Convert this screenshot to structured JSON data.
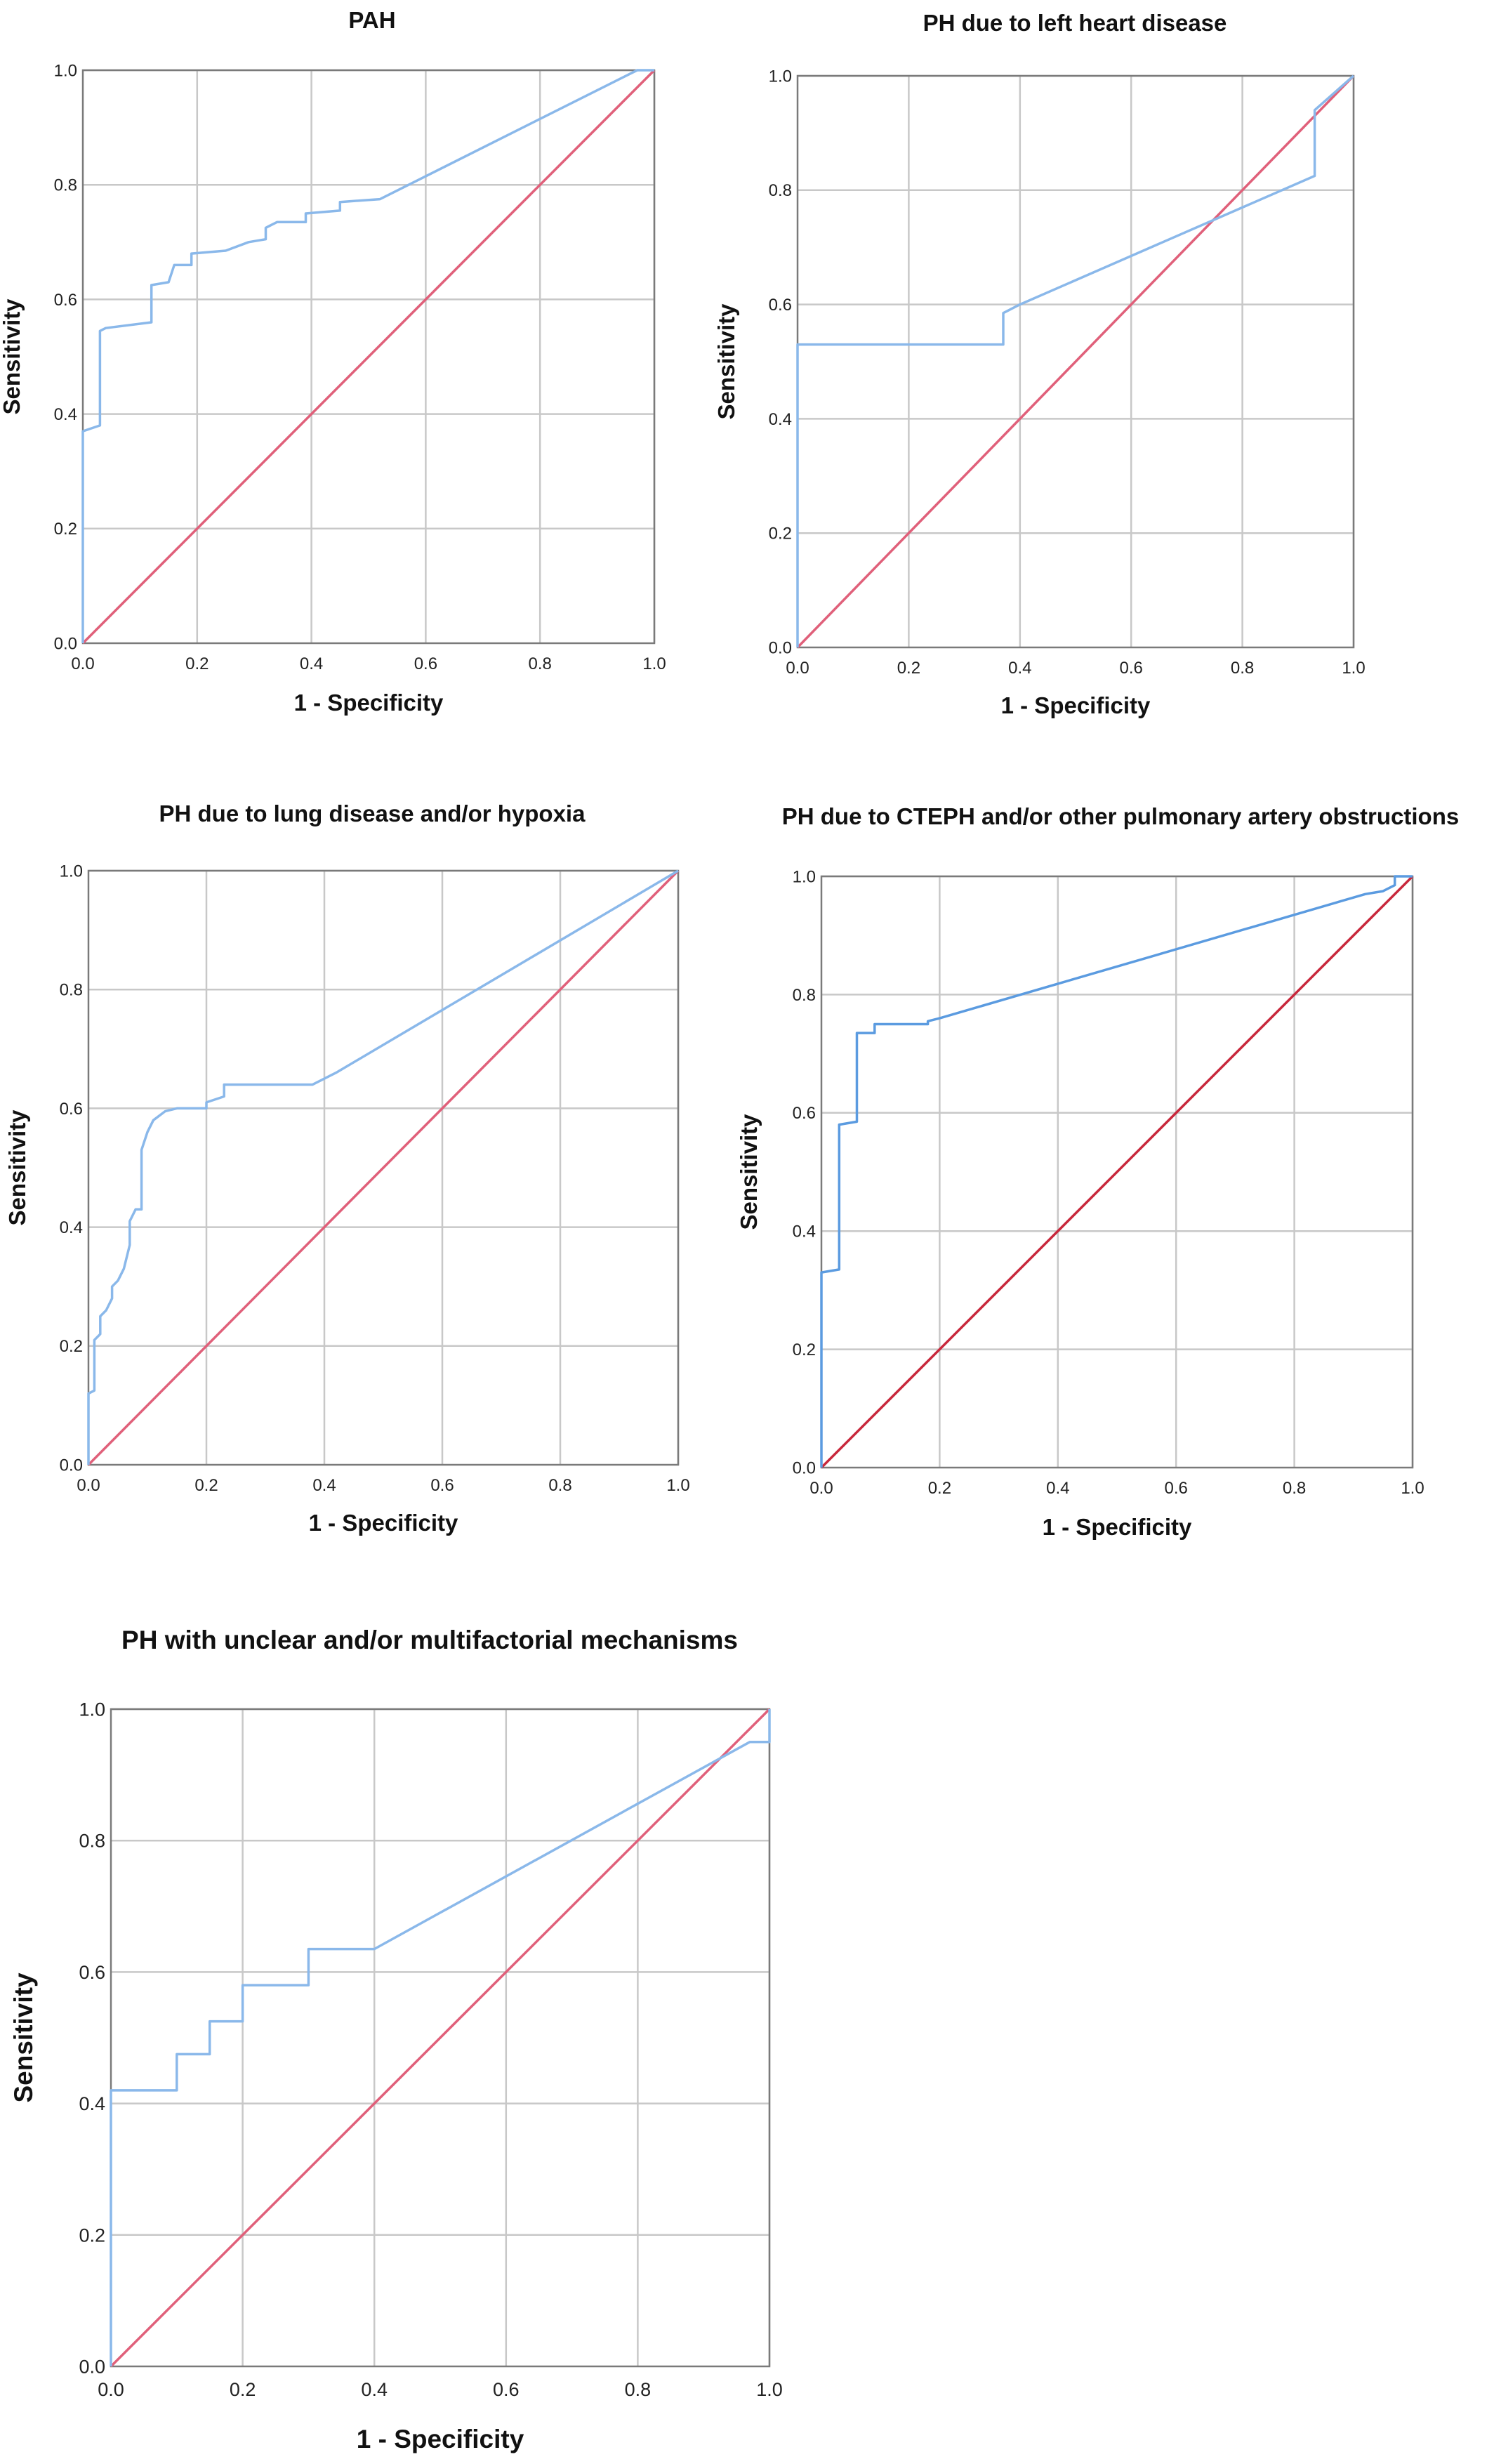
{
  "chart_data": [
    {
      "type": "line",
      "title": "PAH",
      "xlabel": "1 - Specificity",
      "ylabel": "Sensitivity",
      "xlim": [
        0,
        1
      ],
      "ylim": [
        0,
        1
      ],
      "xticks": [
        "0.0",
        "0.2",
        "0.4",
        "0.6",
        "0.8",
        "1.0"
      ],
      "yticks": [
        "0.0",
        "0.2",
        "0.4",
        "0.6",
        "0.8",
        "1.0"
      ],
      "grid": true,
      "colors": {
        "curve": "#8ab8ea",
        "reference": "#e0607a"
      },
      "series": [
        {
          "role": "curve",
          "points": [
            [
              0,
              0
            ],
            [
              0,
              0.37
            ],
            [
              0.03,
              0.38
            ],
            [
              0.03,
              0.545
            ],
            [
              0.04,
              0.55
            ],
            [
              0.12,
              0.56
            ],
            [
              0.12,
              0.625
            ],
            [
              0.15,
              0.63
            ],
            [
              0.16,
              0.66
            ],
            [
              0.19,
              0.66
            ],
            [
              0.19,
              0.68
            ],
            [
              0.25,
              0.685
            ],
            [
              0.29,
              0.7
            ],
            [
              0.32,
              0.705
            ],
            [
              0.32,
              0.725
            ],
            [
              0.34,
              0.735
            ],
            [
              0.39,
              0.735
            ],
            [
              0.39,
              0.75
            ],
            [
              0.45,
              0.755
            ],
            [
              0.45,
              0.77
            ],
            [
              0.52,
              0.775
            ],
            [
              0.97,
              1.0
            ],
            [
              1,
              1
            ]
          ]
        },
        {
          "role": "reference",
          "points": [
            [
              0,
              0
            ],
            [
              1,
              1
            ]
          ]
        }
      ]
    },
    {
      "type": "line",
      "title": "PH due to left heart disease",
      "xlabel": "1 - Specificity",
      "ylabel": "Sensitivity",
      "xlim": [
        0,
        1
      ],
      "ylim": [
        0,
        1
      ],
      "xticks": [
        "0.0",
        "0.2",
        "0.4",
        "0.6",
        "0.8",
        "1.0"
      ],
      "yticks": [
        "0.0",
        "0.2",
        "0.4",
        "0.6",
        "0.8",
        "1.0"
      ],
      "grid": true,
      "colors": {
        "curve": "#8ab8ea",
        "reference": "#e0607a"
      },
      "series": [
        {
          "role": "curve",
          "points": [
            [
              0,
              0
            ],
            [
              0,
              0.53
            ],
            [
              0.37,
              0.53
            ],
            [
              0.37,
              0.585
            ],
            [
              0.4,
              0.6
            ],
            [
              0.93,
              0.825
            ],
            [
              0.93,
              0.94
            ],
            [
              1,
              1
            ]
          ]
        },
        {
          "role": "reference",
          "points": [
            [
              0,
              0
            ],
            [
              1,
              1
            ]
          ]
        }
      ]
    },
    {
      "type": "line",
      "title": "PH due to lung disease and/or hypoxia",
      "xlabel": "1 - Specificity",
      "ylabel": "Sensitivity",
      "xlim": [
        0,
        1
      ],
      "ylim": [
        0,
        1
      ],
      "xticks": [
        "0.0",
        "0.2",
        "0.4",
        "0.6",
        "0.8",
        "1.0"
      ],
      "yticks": [
        "0.0",
        "0.2",
        "0.4",
        "0.6",
        "0.8",
        "1.0"
      ],
      "grid": true,
      "colors": {
        "curve": "#8ab8ea",
        "reference": "#e0607a"
      },
      "series": [
        {
          "role": "curve",
          "points": [
            [
              0,
              0
            ],
            [
              0,
              0.12
            ],
            [
              0.01,
              0.125
            ],
            [
              0.01,
              0.21
            ],
            [
              0.02,
              0.22
            ],
            [
              0.02,
              0.25
            ],
            [
              0.03,
              0.26
            ],
            [
              0.04,
              0.28
            ],
            [
              0.04,
              0.3
            ],
            [
              0.05,
              0.31
            ],
            [
              0.06,
              0.33
            ],
            [
              0.07,
              0.37
            ],
            [
              0.07,
              0.41
            ],
            [
              0.08,
              0.43
            ],
            [
              0.09,
              0.43
            ],
            [
              0.09,
              0.53
            ],
            [
              0.1,
              0.56
            ],
            [
              0.11,
              0.58
            ],
            [
              0.13,
              0.595
            ],
            [
              0.15,
              0.6
            ],
            [
              0.2,
              0.6
            ],
            [
              0.2,
              0.61
            ],
            [
              0.23,
              0.62
            ],
            [
              0.23,
              0.64
            ],
            [
              0.38,
              0.64
            ],
            [
              0.42,
              0.66
            ],
            [
              1,
              1
            ]
          ]
        },
        {
          "role": "reference",
          "points": [
            [
              0,
              0
            ],
            [
              1,
              1
            ]
          ]
        }
      ]
    },
    {
      "type": "line",
      "title": "PH due to CTEPH and/or other pulmonary artery obstructions",
      "xlabel": "1 - Specificity",
      "ylabel": "Sensitivity",
      "xlim": [
        0,
        1
      ],
      "ylim": [
        0,
        1
      ],
      "xticks": [
        "0.0",
        "0.2",
        "0.4",
        "0.6",
        "0.8",
        "1.0"
      ],
      "yticks": [
        "0.0",
        "0.2",
        "0.4",
        "0.6",
        "0.8",
        "1.0"
      ],
      "grid": true,
      "colors": {
        "curve": "#5b9be0",
        "reference": "#c8283c"
      },
      "series": [
        {
          "role": "curve",
          "points": [
            [
              0,
              0
            ],
            [
              0,
              0.33
            ],
            [
              0.03,
              0.335
            ],
            [
              0.03,
              0.58
            ],
            [
              0.06,
              0.585
            ],
            [
              0.06,
              0.735
            ],
            [
              0.09,
              0.735
            ],
            [
              0.09,
              0.75
            ],
            [
              0.18,
              0.75
            ],
            [
              0.18,
              0.755
            ],
            [
              0.2,
              0.76
            ],
            [
              0.92,
              0.97
            ],
            [
              0.95,
              0.975
            ],
            [
              0.97,
              0.985
            ],
            [
              0.97,
              1.0
            ],
            [
              1,
              1
            ]
          ]
        },
        {
          "role": "reference",
          "points": [
            [
              0,
              0
            ],
            [
              1,
              1
            ]
          ]
        }
      ]
    },
    {
      "type": "line",
      "title": "PH with unclear and/or multifactorial mechanisms",
      "xlabel": "1 - Specificity",
      "ylabel": "Sensitivity",
      "xlim": [
        0,
        1
      ],
      "ylim": [
        0,
        1
      ],
      "xticks": [
        "0.0",
        "0.2",
        "0.4",
        "0.6",
        "0.8",
        "1.0"
      ],
      "yticks": [
        "0.0",
        "0.2",
        "0.4",
        "0.6",
        "0.8",
        "1.0"
      ],
      "grid": true,
      "colors": {
        "curve": "#8ab8ea",
        "reference": "#e0607a"
      },
      "series": [
        {
          "role": "curve",
          "points": [
            [
              0,
              0
            ],
            [
              0,
              0.42
            ],
            [
              0.1,
              0.42
            ],
            [
              0.1,
              0.475
            ],
            [
              0.15,
              0.475
            ],
            [
              0.15,
              0.525
            ],
            [
              0.2,
              0.525
            ],
            [
              0.2,
              0.58
            ],
            [
              0.3,
              0.58
            ],
            [
              0.3,
              0.635
            ],
            [
              0.4,
              0.635
            ],
            [
              0.97,
              0.95
            ],
            [
              1,
              0.95
            ],
            [
              1,
              1
            ]
          ]
        },
        {
          "role": "reference",
          "points": [
            [
              0,
              0
            ],
            [
              1,
              1
            ]
          ]
        }
      ]
    }
  ]
}
